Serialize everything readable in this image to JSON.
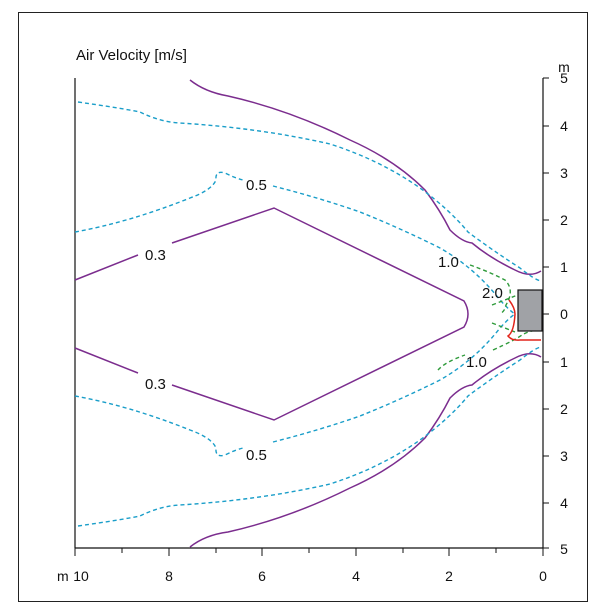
{
  "title": "Air Velocity [m/s]",
  "unit_label": "m",
  "x_ticks": [
    "10",
    "8",
    "6",
    "4",
    "2",
    "0"
  ],
  "y_ticks": [
    "5",
    "4",
    "3",
    "2",
    "1",
    "0",
    "1",
    "2",
    "3",
    "4",
    "5"
  ],
  "contour_labels": {
    "c03_top": "0.3",
    "c03_bottom": "0.3",
    "c05_top": "0.5",
    "c05_bottom": "0.5",
    "c10_top": "1.0",
    "c10_bottom": "1.0",
    "c20": "2.0"
  },
  "colors": {
    "contour_0.3": "#7b2d8e",
    "contour_0.5": "#1a9ec9",
    "contour_1.0": "#2e9a3a",
    "contour_2.0": "#e2231a",
    "outlet": "#a0a2a6"
  }
}
